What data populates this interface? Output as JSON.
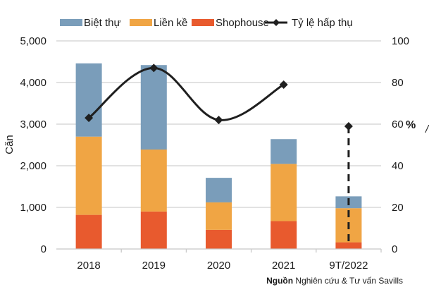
{
  "chart_data": {
    "type": "bar",
    "stacked": true,
    "title": "",
    "categories": [
      "2018",
      "2019",
      "2020",
      "2021",
      "9T/2022"
    ],
    "series": [
      {
        "name": "Shophouse",
        "color": "#E85A2E",
        "values": [
          820,
          900,
          460,
          670,
          160
        ]
      },
      {
        "name": "Liền kề",
        "color": "#F0A544",
        "values": [
          1880,
          1490,
          660,
          1375,
          820
        ]
      },
      {
        "name": "Biệt thự",
        "color": "#7A9DBA",
        "values": [
          1760,
          2030,
          590,
          595,
          285
        ]
      }
    ],
    "line_series": {
      "name": "Tỷ lệ hấp thụ",
      "color": "#1f1f1f",
      "axis": "right",
      "values": [
        63,
        87,
        62,
        79,
        59
      ],
      "dashed_last_segment": true
    },
    "legend": [
      "Biệt thự",
      "Liền kề",
      "Shophouse",
      "Tỷ lệ hấp thụ"
    ],
    "legend_position": "top",
    "ylabel": "Căn",
    "y2label": "%",
    "ylim": [
      0,
      5000
    ],
    "yticks": [
      "0",
      "1,000",
      "2,000",
      "3,000",
      "4,000",
      "5,000"
    ],
    "y2lim": [
      0,
      100
    ],
    "y2ticks": [
      "0",
      "20",
      "40",
      "60",
      "80",
      "100"
    ],
    "grid": true
  },
  "source": {
    "label": "Nguồn",
    "text": "Nghiên cứu & Tư vấn Savills"
  }
}
